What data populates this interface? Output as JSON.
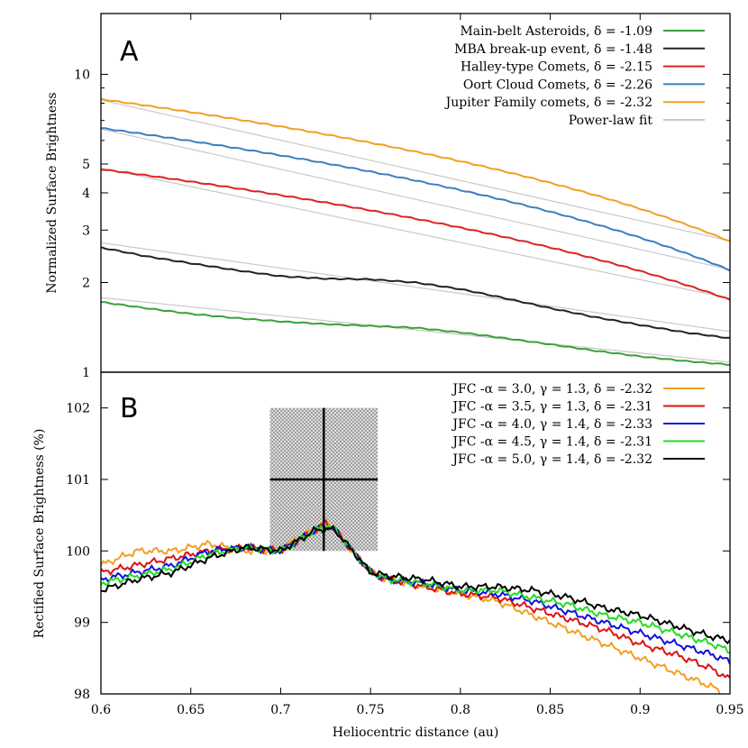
{
  "chart_data": [
    {
      "panel": "A",
      "type": "line",
      "xlabel": "Heliocentric distance (au)",
      "ylabel": "Normalized Surface Brightness",
      "xlim": [
        0.6,
        0.95
      ],
      "ylim": [
        1,
        16
      ],
      "yscale": "log",
      "legend_position": "top-right",
      "x_ticks": [
        "0.6",
        "0.65",
        "0.7",
        "0.75",
        "0.8",
        "0.85",
        "0.9",
        "0.95"
      ],
      "y_ticks": [
        {
          "value": 1,
          "label": "1"
        },
        {
          "value": 2,
          "label": "2"
        },
        {
          "value": 3,
          "label": "3"
        },
        {
          "value": 4,
          "label": "4"
        },
        {
          "value": 5,
          "label": "5"
        },
        {
          "value": 10,
          "label": "10"
        }
      ],
      "series": [
        {
          "name": "Main-belt Asteroids, δ = -1.09",
          "color": "#3aa23a",
          "x": [
            0.6,
            0.625,
            0.65,
            0.675,
            0.7,
            0.725,
            0.75,
            0.775,
            0.8,
            0.825,
            0.85,
            0.875,
            0.9,
            0.925,
            0.95
          ],
          "y": [
            1.72,
            1.64,
            1.57,
            1.52,
            1.48,
            1.45,
            1.43,
            1.41,
            1.36,
            1.3,
            1.24,
            1.18,
            1.13,
            1.09,
            1.06
          ]
        },
        {
          "name": "MBA break-up event, δ = -1.48",
          "color": "#222222",
          "x": [
            0.6,
            0.625,
            0.65,
            0.675,
            0.7,
            0.725,
            0.75,
            0.775,
            0.8,
            0.825,
            0.85,
            0.875,
            0.9,
            0.925,
            0.95
          ],
          "y": [
            2.62,
            2.45,
            2.32,
            2.2,
            2.1,
            2.06,
            2.05,
            2.0,
            1.9,
            1.77,
            1.64,
            1.53,
            1.44,
            1.36,
            1.3
          ]
        },
        {
          "name": "Halley-type Comets, δ = -2.15",
          "color": "#dd2222",
          "x": [
            0.6,
            0.95
          ],
          "y": [
            4.8,
            1.75
          ]
        },
        {
          "name": "Oort Cloud Comets, δ = -2.26",
          "color": "#3a7fc1",
          "x": [
            0.6,
            0.95
          ],
          "y": [
            6.6,
            2.2
          ]
        },
        {
          "name": "Jupiter Family comets, δ = -2.32",
          "color": "#f0a020",
          "x": [
            0.6,
            0.95
          ],
          "y": [
            8.25,
            2.75
          ]
        },
        {
          "name": "Power-law fit",
          "color": "#c8c8c8",
          "fits": [
            {
              "x": [
                0.6,
                0.95
              ],
              "y": [
                1.78,
                1.08
              ]
            },
            {
              "x": [
                0.6,
                0.95
              ],
              "y": [
                2.72,
                1.37
              ]
            },
            {
              "x": [
                0.6,
                0.95
              ],
              "y": [
                4.85,
                1.77
              ]
            },
            {
              "x": [
                0.6,
                0.95
              ],
              "y": [
                6.55,
                2.21
              ]
            },
            {
              "x": [
                0.6,
                0.95
              ],
              "y": [
                8.2,
                2.76
              ]
            }
          ]
        }
      ],
      "annotation": "A"
    },
    {
      "panel": "B",
      "type": "line",
      "xlabel": "Heliocentric distance (au)",
      "ylabel": "Rectified Surface Brightness (%)",
      "xlim": [
        0.6,
        0.95
      ],
      "ylim": [
        98,
        102.5
      ],
      "legend_position": "top-right",
      "x_ticks": [
        "0.6",
        "0.65",
        "0.7",
        "0.75",
        "0.8",
        "0.85",
        "0.9",
        "0.95"
      ],
      "y_ticks": [
        "98",
        "99",
        "100",
        "101",
        "102"
      ],
      "x": [
        0.6,
        0.62,
        0.64,
        0.66,
        0.68,
        0.7,
        0.71,
        0.72,
        0.725,
        0.73,
        0.74,
        0.75,
        0.76,
        0.78,
        0.8,
        0.82,
        0.84,
        0.86,
        0.88,
        0.9,
        0.92,
        0.94,
        0.95
      ],
      "series": [
        {
          "name": "JFC -α = 3.0, γ = 1.3, δ = -2.32",
          "color": "#f0a020",
          "values": [
            99.8,
            100.0,
            100.0,
            100.1,
            100.0,
            100.0,
            100.2,
            100.3,
            100.4,
            100.3,
            100.0,
            99.7,
            99.6,
            99.5,
            99.4,
            99.3,
            99.1,
            98.9,
            98.7,
            98.5,
            98.3,
            98.1,
            97.95
          ]
        },
        {
          "name": "JFC -α = 3.5, γ = 1.3, δ = -2.31",
          "color": "#dd1111",
          "values": [
            99.7,
            99.8,
            99.9,
            100.0,
            100.05,
            100.0,
            100.15,
            100.3,
            100.4,
            100.3,
            100.0,
            99.7,
            99.6,
            99.5,
            99.4,
            99.35,
            99.2,
            99.05,
            98.9,
            98.7,
            98.55,
            98.35,
            98.2
          ]
        },
        {
          "name": "JFC -α = 4.0, γ = 1.4, δ = -2.33",
          "color": "#1111dd",
          "values": [
            99.6,
            99.7,
            99.8,
            100.0,
            100.05,
            100.0,
            100.15,
            100.3,
            100.35,
            100.3,
            100.0,
            99.7,
            99.6,
            99.55,
            99.45,
            99.4,
            99.3,
            99.15,
            99.0,
            98.85,
            98.7,
            98.55,
            98.45
          ]
        },
        {
          "name": "JFC -α = 4.5, γ = 1.4, δ = -2.31",
          "color": "#22dd22",
          "values": [
            99.55,
            99.65,
            99.75,
            99.95,
            100.05,
            100.0,
            100.15,
            100.3,
            100.35,
            100.3,
            100.0,
            99.7,
            99.6,
            99.55,
            99.45,
            99.45,
            99.35,
            99.25,
            99.1,
            99.0,
            98.85,
            98.7,
            98.6
          ]
        },
        {
          "name": "JFC -α = 5.0, γ = 1.4, δ = -2.32",
          "color": "#000000",
          "values": [
            99.45,
            99.6,
            99.7,
            99.9,
            100.05,
            100.0,
            100.15,
            100.3,
            100.3,
            100.3,
            100.0,
            99.7,
            99.65,
            99.6,
            99.5,
            99.5,
            99.45,
            99.35,
            99.2,
            99.1,
            98.95,
            98.8,
            98.75
          ]
        }
      ],
      "highlight": {
        "x_range": [
          0.694,
          0.754
        ],
        "y_range": [
          100.0,
          102.0
        ],
        "center": [
          0.724,
          101.0
        ]
      },
      "annotation": "B"
    }
  ]
}
